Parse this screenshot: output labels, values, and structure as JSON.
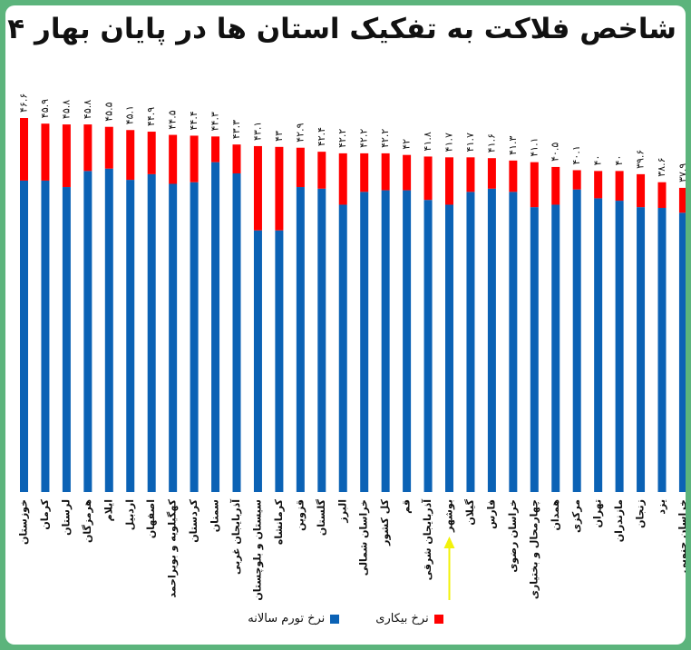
{
  "chart_data": {
    "type": "bar",
    "stacked": true,
    "title": "شاخص فلاکت به تفکیک استان ها در پایان بهار ۱۴۰۴",
    "categories": [
      "خوزستان",
      "کرمان",
      "لرستان",
      "هرمزگان",
      "ایلام",
      "اردبیل",
      "اصفهان",
      "کهگیلویه و بویراحمد",
      "کردستان",
      "سمنان",
      "آذربایجان غربی",
      "سیستان و بلوچستان",
      "کرمانشاه",
      "قزوین",
      "گلستان",
      "البرز",
      "خراسان شمالی",
      "کل کشور",
      "قم",
      "آذربایجان شرقی",
      "بوشهر",
      "گیلان",
      "فارس",
      "خراسان رضوی",
      "چهارمحال و بختیاری",
      "همدان",
      "مرکزی",
      "تهران",
      "مازندران",
      "زنجان",
      "یزد",
      "خراسان جنوبی"
    ],
    "totals": [
      "۴۶.۶",
      "۴۵.۹",
      "۴۵.۸",
      "۴۵.۸",
      "۴۵.۵",
      "۴۵.۱",
      "۴۴.۹",
      "۴۴.۵",
      "۴۴.۴",
      "۴۴.۳",
      "۴۳.۳",
      "۴۳.۱",
      "۴۳",
      "۴۲.۹",
      "۴۲.۴",
      "۴۲.۲",
      "۴۲.۲",
      "۴۲.۲",
      "۴۲",
      "۴۱.۸",
      "۴۱.۷",
      "۴۱.۷",
      "۴۱.۶",
      "۴۱.۳",
      "۴۱.۱",
      "۴۰.۵",
      "۴۰.۱",
      "۴۰",
      "۴۰",
      "۳۹.۶",
      "۳۸.۶",
      "۳۷.۹"
    ],
    "total_values": [
      46.6,
      45.9,
      45.8,
      45.8,
      45.5,
      45.1,
      44.9,
      44.5,
      44.4,
      44.3,
      43.3,
      43.1,
      43,
      42.9,
      42.4,
      42.2,
      42.2,
      42.2,
      42,
      41.8,
      41.7,
      41.7,
      41.6,
      41.3,
      41.1,
      40.5,
      40.1,
      40,
      40,
      39.6,
      38.6,
      37.9
    ],
    "series": [
      {
        "name": "نرخ تورم سالانه",
        "color": "#0b62b5",
        "values": [
          38.8,
          38.8,
          38.0,
          40.0,
          40.3,
          38.9,
          39.6,
          38.4,
          38.6,
          41.1,
          39.7,
          32.6,
          32.6,
          38.0,
          37.8,
          35.8,
          37.4,
          37.6,
          37.6,
          36.4,
          35.8,
          37.4,
          37.8,
          37.4,
          35.5,
          35.8,
          37.7,
          36.6,
          36.3,
          35.5,
          35.4,
          34.8
        ]
      },
      {
        "name": "نرخ بیکاری",
        "color": "#ff0000",
        "values": [
          7.8,
          7.1,
          7.8,
          5.8,
          5.2,
          6.2,
          5.3,
          6.1,
          5.8,
          3.2,
          3.6,
          10.5,
          10.4,
          4.9,
          4.6,
          6.4,
          4.8,
          4.6,
          4.4,
          5.4,
          5.9,
          4.3,
          3.8,
          3.9,
          5.6,
          4.7,
          2.4,
          3.4,
          3.7,
          4.1,
          3.2,
          3.1
        ]
      }
    ],
    "grid": false,
    "legend": "bottom-center",
    "annotation": "yellow arrow pointing to بوشهر"
  }
}
